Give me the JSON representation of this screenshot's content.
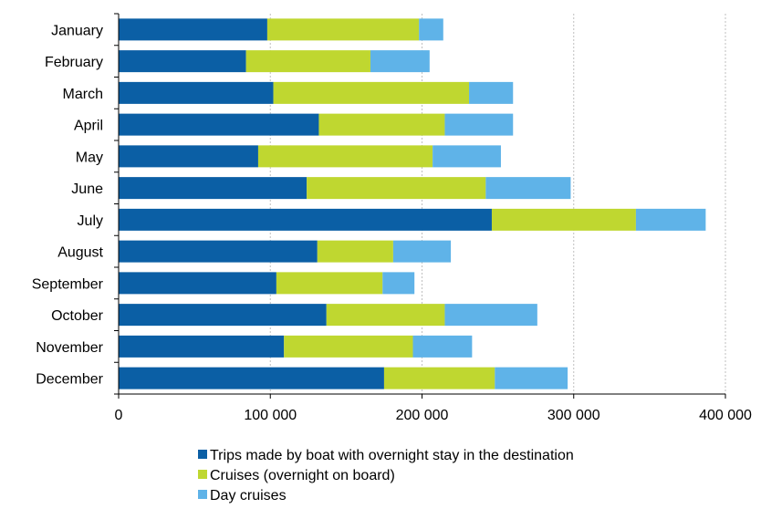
{
  "chart_data": {
    "type": "bar",
    "orientation": "horizontal",
    "stacked": true,
    "title": "",
    "xlabel": "",
    "ylabel": "",
    "categories": [
      "January",
      "February",
      "March",
      "April",
      "May",
      "June",
      "July",
      "August",
      "September",
      "October",
      "November",
      "December"
    ],
    "series": [
      {
        "name": "Trips made by boat with overnight stay in the destination",
        "color": "#0b5fa5",
        "values": [
          98000,
          84000,
          102000,
          132000,
          92000,
          124000,
          246000,
          131000,
          104000,
          137000,
          109000,
          175000
        ]
      },
      {
        "name": "Cruises (overnight on board)",
        "color": "#bfd730",
        "values": [
          100000,
          82000,
          129000,
          83000,
          115000,
          118000,
          95000,
          50000,
          70000,
          78000,
          85000,
          73000
        ]
      },
      {
        "name": "Day cruises",
        "color": "#5fb3e8",
        "values": [
          16000,
          39000,
          29000,
          45000,
          45000,
          56000,
          46000,
          38000,
          21000,
          61000,
          39000,
          48000
        ]
      }
    ],
    "xlim": [
      0,
      400000
    ],
    "xticks": [
      0,
      100000,
      200000,
      300000,
      400000
    ],
    "xtick_labels": [
      "0",
      "100 000",
      "200 000",
      "300 000",
      "400 000"
    ],
    "grid": "vertical dashed",
    "legend_position": "bottom"
  }
}
